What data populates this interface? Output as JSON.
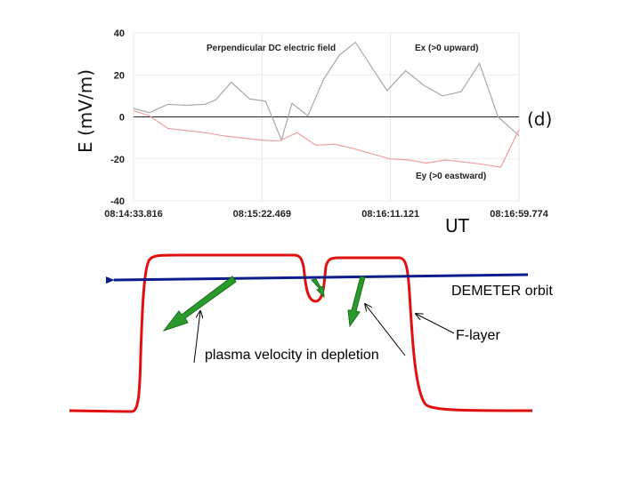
{
  "chart_data": {
    "type": "line",
    "title": "Perpendicular DC electric field",
    "ylabel": "E (mV/m)",
    "xlabel": "UT",
    "panel_label": "(d)",
    "ylim": [
      -40,
      40
    ],
    "yticks": [
      40,
      20,
      0,
      -20,
      -40
    ],
    "xlim": [
      0,
      145.958
    ],
    "xticks": [
      {
        "value": 0,
        "label": "08:14:33.816"
      },
      {
        "value": 48.653,
        "label": "08:15:22.469"
      },
      {
        "value": 97.305,
        "label": "08:16:11.121"
      },
      {
        "value": 145.958,
        "label": "08:16:59.774"
      }
    ],
    "series": [
      {
        "name": "Ex (>0 upward)",
        "color": "#a8a8a8",
        "x": [
          0,
          6,
          13,
          20,
          27,
          31,
          37,
          44,
          50,
          56,
          60,
          66,
          72,
          78,
          84,
          90,
          96,
          103,
          110,
          117,
          124,
          131,
          138,
          146
        ],
        "y": [
          4,
          2,
          6,
          5.5,
          6,
          8,
          16.5,
          8.5,
          7.5,
          -11,
          6.5,
          0.5,
          18,
          29.5,
          35.5,
          24,
          12.5,
          22,
          15,
          10,
          12,
          25.5,
          0,
          -9
        ]
      },
      {
        "name": "Ey (>0 eastward)",
        "color": "#f0a0a0",
        "x": [
          0,
          6,
          13,
          20,
          27,
          34,
          41,
          48,
          55,
          62,
          69,
          76,
          83,
          90,
          97,
          104,
          111,
          118,
          125,
          132,
          139,
          146
        ],
        "y": [
          3,
          0.5,
          -5.5,
          -6.5,
          -7.5,
          -9,
          -10,
          -11,
          -11.5,
          -7.5,
          -13.5,
          -13,
          -15,
          -17.5,
          -20,
          -20.5,
          -22,
          -20.5,
          -21.5,
          -22.5,
          -24,
          -6
        ]
      }
    ]
  },
  "diagram": {
    "orbit_label": "DEMETER orbit",
    "layer_label": "F-layer",
    "velocity_label": "plasma velocity in depletion"
  }
}
